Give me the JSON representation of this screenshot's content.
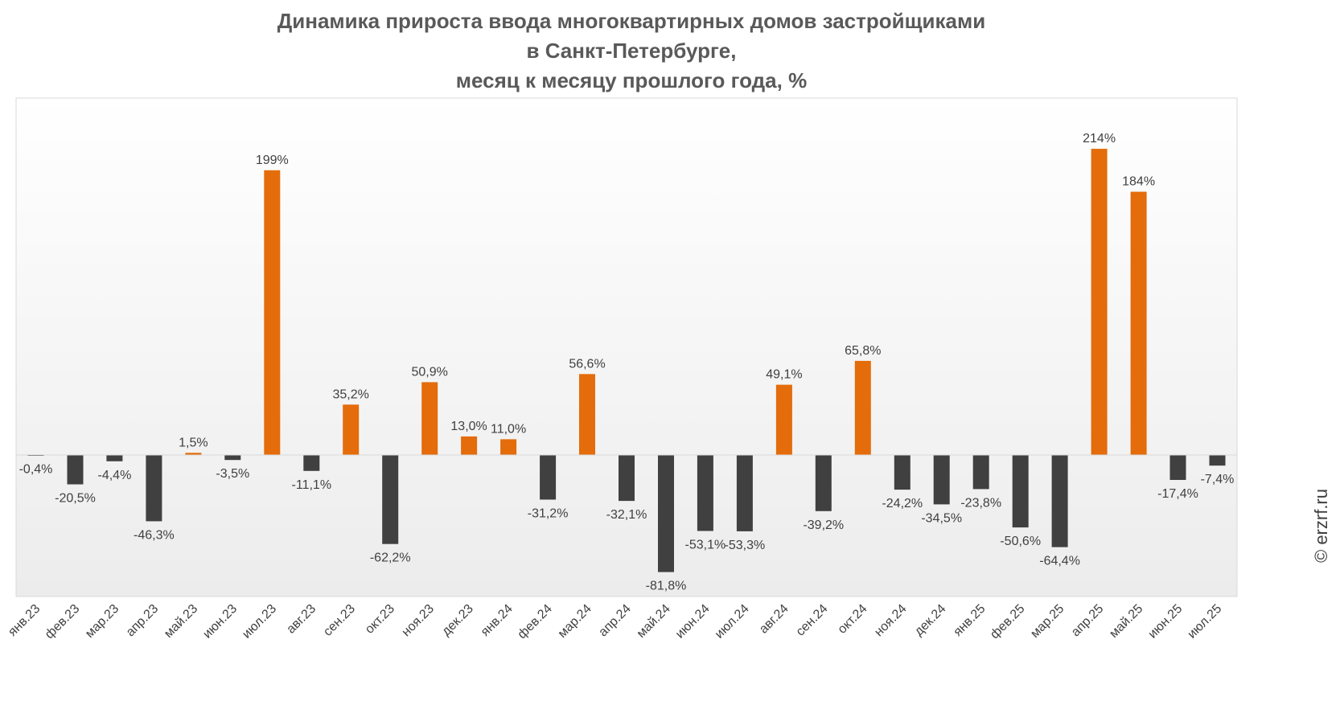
{
  "title": {
    "line1": "Динамика прироста ввода многоквартирных домов застройщиками",
    "line2": "в Санкт-Петербурге,",
    "line3": "месяц к месяцу прошлого года, %"
  },
  "watermark": "© erzrf.ru",
  "colors": {
    "positive": "#e46c0a",
    "negative": "#404040",
    "label": "#404040",
    "axis": "#d9d9d9"
  },
  "chart_data": {
    "type": "bar",
    "title": "Динамика прироста ввода многоквартирных домов застройщиками в Санкт-Петербурге, месяц к месяцу прошлого года, %",
    "categories": [
      "янв.23",
      "фев.23",
      "мар.23",
      "апр.23",
      "май.23",
      "июн.23",
      "июл.23",
      "авг.23",
      "сен.23",
      "окт.23",
      "ноя.23",
      "дек.23",
      "янв.24",
      "фев.24",
      "мар.24",
      "апр.24",
      "май.24",
      "июн.24",
      "июл.24",
      "авг.24",
      "сен.24",
      "окт.24",
      "ноя.24",
      "дек.24",
      "янв.25",
      "фев.25",
      "мар.25",
      "апр.25",
      "май.25",
      "июн.25",
      "июл.25"
    ],
    "values": [
      -0.4,
      -20.5,
      -4.4,
      -46.3,
      1.5,
      -3.5,
      199,
      -11.1,
      35.2,
      -62.2,
      50.9,
      13.0,
      11.0,
      -31.2,
      56.6,
      -32.1,
      -81.8,
      -53.1,
      -53.3,
      49.1,
      -39.2,
      65.8,
      -24.2,
      -34.5,
      -23.8,
      -50.6,
      -64.4,
      214,
      184,
      -17.4,
      -7.4
    ],
    "labels": [
      "-0,4%",
      "-20,5%",
      "-4,4%",
      "-46,3%",
      "1,5%",
      "-3,5%",
      "199%",
      "-11,1%",
      "35,2%",
      "-62,2%",
      "50,9%",
      "13,0%",
      "11,0%",
      "-31,2%",
      "56,6%",
      "-32,1%",
      "-81,8%",
      "-53,1%",
      "-53,3%",
      "49,1%",
      "-39,2%",
      "65,8%",
      "-24,2%",
      "-34,5%",
      "-23,8%",
      "-50,6%",
      "-64,4%",
      "214%",
      "184%",
      "-17,4%",
      "-7,4%"
    ],
    "xlabel": "",
    "ylabel": "",
    "ylim": [
      -100,
      250
    ],
    "grid": false
  }
}
